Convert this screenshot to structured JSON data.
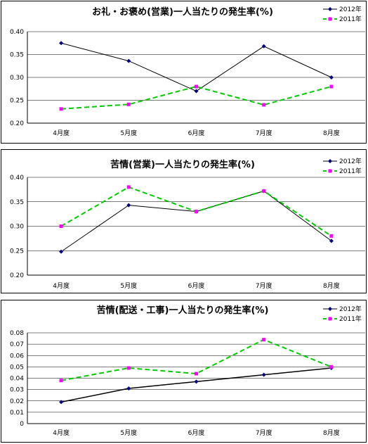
{
  "chart_data": [
    {
      "type": "line",
      "title": "お礼・お褒め(営業)一人当たりの発生率(%)",
      "categories": [
        "4月度",
        "5月度",
        "6月度",
        "7月度",
        "8月度"
      ],
      "yticks": [
        "0.20",
        "0.25",
        "0.30",
        "0.35",
        "0.40"
      ],
      "ylim": [
        0.2,
        0.4
      ],
      "grid": true,
      "legend_position": "top-right",
      "series": [
        {
          "name": "2012年",
          "values": [
            0.375,
            0.336,
            0.27,
            0.368,
            0.3
          ],
          "color": "#000000",
          "marker_color": "#000080",
          "dashed": false
        },
        {
          "name": "2011年",
          "values": [
            0.231,
            0.241,
            0.28,
            0.24,
            0.28
          ],
          "color": "#00cc00",
          "marker_color": "#ff00ff",
          "dashed": true
        }
      ]
    },
    {
      "type": "line",
      "title": "苦情(営業)一人当たりの発生率(%)",
      "categories": [
        "4月度",
        "5月度",
        "6月度",
        "7月度",
        "8月度"
      ],
      "yticks": [
        "0.20",
        "0.25",
        "0.30",
        "0.35",
        "0.40"
      ],
      "ylim": [
        0.2,
        0.4
      ],
      "grid": true,
      "legend_position": "top-right",
      "series": [
        {
          "name": "2012年",
          "values": [
            0.248,
            0.343,
            0.33,
            0.372,
            0.27
          ],
          "color": "#000000",
          "marker_color": "#000080",
          "dashed": false
        },
        {
          "name": "2011年",
          "values": [
            0.3,
            0.38,
            0.33,
            0.372,
            0.28
          ],
          "color": "#00cc00",
          "marker_color": "#ff00ff",
          "dashed": true
        }
      ]
    },
    {
      "type": "line",
      "title": "苦情(配送・工事)一人当たりの発生率(%)",
      "categories": [
        "4月度",
        "5月度",
        "6月度",
        "7月度",
        "8月度"
      ],
      "yticks": [
        "0",
        "0.01",
        "0.02",
        "0.03",
        "0.04",
        "0.05",
        "0.06",
        "0.07",
        "0.08"
      ],
      "ylim": [
        0,
        0.08
      ],
      "grid": true,
      "legend_position": "top-right",
      "series": [
        {
          "name": "2012年",
          "values": [
            0.019,
            0.031,
            0.037,
            0.043,
            0.049
          ],
          "color": "#000000",
          "marker_color": "#000080",
          "dashed": false
        },
        {
          "name": "2011年",
          "values": [
            0.038,
            0.049,
            0.044,
            0.074,
            0.05
          ],
          "color": "#00cc00",
          "marker_color": "#ff00ff",
          "dashed": true
        }
      ]
    }
  ]
}
